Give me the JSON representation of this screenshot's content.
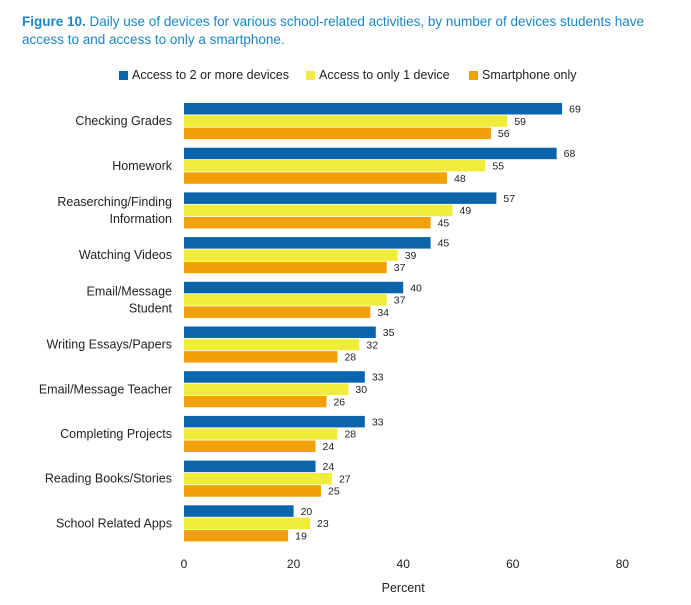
{
  "figure": {
    "label": "Figure 10.",
    "caption": " Daily use of devices for various school-related activities, by number of devices students have access to and access to only a smartphone."
  },
  "colors": {
    "series": [
      "#0b65ad",
      "#f0ec3c",
      "#f2a007"
    ],
    "title": "#1a86c7"
  },
  "chart_data": {
    "type": "bar",
    "orientation": "horizontal",
    "categories": [
      "Checking Grades",
      "Homework",
      "Reaserching/Finding Information",
      "Watching Videos",
      "Email/Message Student",
      "Writing Essays/Papers",
      "Email/Message Teacher",
      "Completing Projects",
      "Reading Books/Stories",
      "School Related Apps"
    ],
    "category_lines": [
      [
        "Checking Grades"
      ],
      [
        "Homework"
      ],
      [
        "Reaserching/Finding",
        "Information"
      ],
      [
        "Watching Videos"
      ],
      [
        "Email/Message",
        "Student"
      ],
      [
        "Writing Essays/Papers"
      ],
      [
        "Email/Message Teacher"
      ],
      [
        "Completing Projects"
      ],
      [
        "Reading Books/Stories"
      ],
      [
        "School Related Apps"
      ]
    ],
    "series": [
      {
        "name": "Access to 2 or more devices",
        "values": [
          69,
          68,
          57,
          45,
          40,
          35,
          33,
          33,
          24,
          20
        ]
      },
      {
        "name": "Access to only 1 device",
        "values": [
          59,
          55,
          49,
          39,
          37,
          32,
          30,
          28,
          27,
          23
        ]
      },
      {
        "name": "Smartphone only",
        "values": [
          56,
          48,
          45,
          37,
          34,
          28,
          26,
          24,
          25,
          19
        ]
      }
    ],
    "xlabel": "Percent",
    "xlim": [
      0,
      80
    ],
    "xticks": [
      0,
      20,
      40,
      60,
      80
    ],
    "legend_position": "top",
    "grid": false
  }
}
